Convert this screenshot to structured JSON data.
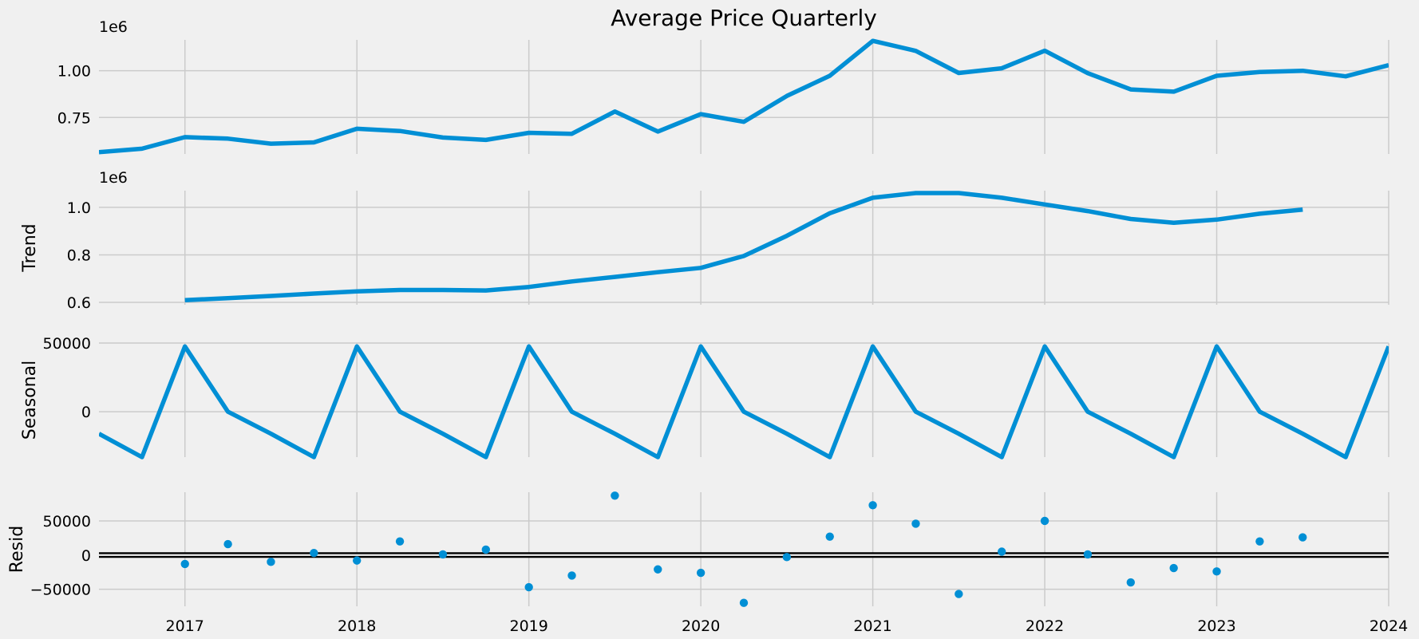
{
  "chart_data": {
    "type": "line",
    "title": "Average Price Quarterly",
    "xlim": [
      "2016-07",
      "2024-01"
    ],
    "x_ticks": [
      "2017",
      "2018",
      "2019",
      "2020",
      "2021",
      "2022",
      "2023",
      "2024"
    ],
    "x": [
      "2016-07",
      "2016-10",
      "2017-01",
      "2017-04",
      "2017-07",
      "2017-10",
      "2018-01",
      "2018-04",
      "2018-07",
      "2018-10",
      "2019-01",
      "2019-04",
      "2019-07",
      "2019-10",
      "2020-01",
      "2020-04",
      "2020-07",
      "2020-10",
      "2021-01",
      "2021-04",
      "2021-07",
      "2021-10",
      "2022-01",
      "2022-04",
      "2022-07",
      "2022-10",
      "2023-01",
      "2023-04",
      "2023-07",
      "2023-10",
      "2024-01"
    ],
    "colors": {
      "line": "#008fd5",
      "zero_line": "#000000",
      "grid": "#cbcbcb",
      "background": "#f0f0f0"
    },
    "grid": true,
    "panels": [
      {
        "key": "observed",
        "ylabel": "",
        "offset_text": "1e6",
        "ylim": [
          0.555,
          1.165
        ],
        "y_ticks": [
          {
            "v": 0.75,
            "label": "0.75"
          },
          {
            "v": 1.0,
            "label": "1.00"
          }
        ],
        "style": "line",
        "values": [
          0.565,
          0.583,
          0.645,
          0.637,
          0.61,
          0.617,
          0.69,
          0.678,
          0.643,
          0.63,
          0.668,
          0.663,
          0.782,
          0.675,
          0.768,
          0.727,
          0.865,
          0.973,
          1.16,
          1.106,
          0.988,
          1.013,
          1.107,
          0.987,
          0.9,
          0.888,
          0.973,
          0.993,
          1.0,
          0.97,
          1.03
        ]
      },
      {
        "key": "trend",
        "ylabel": "Trend",
        "offset_text": "1e6",
        "ylim": [
          0.59,
          1.07
        ],
        "y_ticks": [
          {
            "v": 0.6,
            "label": "0.6"
          },
          {
            "v": 0.8,
            "label": "0.8"
          },
          {
            "v": 1.0,
            "label": "1.0"
          }
        ],
        "style": "line",
        "values": [
          null,
          null,
          0.609,
          0.618,
          0.627,
          0.637,
          0.646,
          0.652,
          0.652,
          0.65,
          0.665,
          0.688,
          0.707,
          0.727,
          0.745,
          0.795,
          0.88,
          0.975,
          1.04,
          1.06,
          1.06,
          1.04,
          1.012,
          0.984,
          0.951,
          0.935,
          0.948,
          0.973,
          0.99,
          null,
          null
        ]
      },
      {
        "key": "seasonal",
        "ylabel": "Seasonal",
        "offset_text": "",
        "ylim": [
          -33000,
          50000
        ],
        "y_ticks": [
          {
            "v": 0,
            "label": "0"
          },
          {
            "v": 50000,
            "label": "50000"
          }
        ],
        "style": "line",
        "values": [
          -16000,
          -33000,
          47500,
          0,
          -16000,
          -33000,
          47500,
          0,
          -16000,
          -33000,
          47500,
          0,
          -16000,
          -33000,
          47500,
          0,
          -16000,
          -33000,
          47500,
          0,
          -16000,
          -33000,
          47500,
          0,
          -16000,
          -33000,
          47500,
          0,
          -16000,
          -33000,
          47500
        ]
      },
      {
        "key": "resid",
        "ylabel": "Resid",
        "offset_text": "",
        "ylim": [
          -75000,
          92000
        ],
        "y_ticks": [
          {
            "v": -50000,
            "label": "−50000"
          },
          {
            "v": 0,
            "label": "0"
          },
          {
            "v": 50000,
            "label": "50000"
          }
        ],
        "style": "scatter",
        "zero_line": true,
        "values": [
          null,
          null,
          -13000,
          16000,
          -10000,
          3000,
          -8000,
          20000,
          1000,
          8000,
          -47000,
          -30000,
          87000,
          -21000,
          -26000,
          -70000,
          -3000,
          27000,
          73000,
          46000,
          -57000,
          5000,
          50000,
          1000,
          -40000,
          -19000,
          -24000,
          20000,
          26000,
          null,
          null
        ]
      }
    ]
  }
}
